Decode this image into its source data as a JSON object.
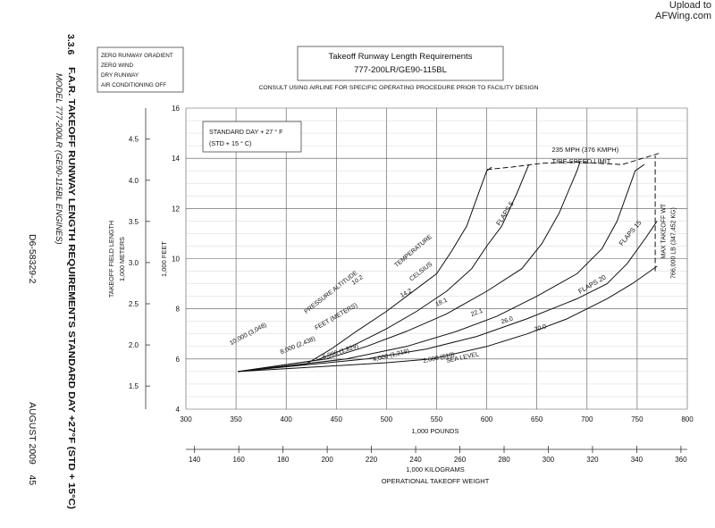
{
  "watermark": {
    "line1": "Upload to",
    "line2": "AFWing.com"
  },
  "side": {
    "section": "3.3.6",
    "heading": "F.A.R. TAKEOFF RUNWAY LENGTH REQUIREMENTS STANDARD DAY +27°F (STD + 15°C)",
    "model": "MODEL 777-200LR (GE90-115BL ENGINES)",
    "doc_number": "D6-58329-2",
    "date_page": "AUGUST 2009    45"
  },
  "conditions_box": [
    "ZERO RUNWAY GRADIENT",
    "ZERO WIND",
    "DRY RUNWAY",
    "AIR CONDITIONING OFF"
  ],
  "chart_data": {
    "type": "line",
    "title": "Takeoff Runway Length Requirements",
    "subtitle": "777-200LR/GE90-115BL",
    "note": "CONSULT USING AIRLINE FOR SPECIFIC OPERATING PROCEDURE PRIOR TO FACILITY DESIGN",
    "xlabel": "1,000 POUNDS",
    "xlim": [
      300,
      800
    ],
    "xticks": [
      300,
      350,
      400,
      450,
      500,
      550,
      600,
      650,
      700,
      750,
      800
    ],
    "x2label": "1,000 KILOGRAMS",
    "x2lim": [
      136,
      363
    ],
    "x2ticks": [
      140,
      160,
      180,
      200,
      220,
      240,
      260,
      280,
      300,
      320,
      340,
      360
    ],
    "bottom_label": "OPERATIONAL TAKEOFF WEIGHT",
    "ylabel": "1,000 FEET",
    "ylim": [
      4,
      16
    ],
    "yticks": [
      4,
      6,
      8,
      10,
      12,
      14,
      16
    ],
    "y2label_main": "TAKEOFF FIELD LENGTH",
    "y2label_sub": "1,000 METERS",
    "y2ticks": [
      1.5,
      2.0,
      2.5,
      3.0,
      3.5,
      4.0,
      4.5
    ],
    "grid": true,
    "std_day_box": [
      "STANDARD DAY + 27 ° F",
      "(STD + 15 ° C)"
    ],
    "series": [
      {
        "name": "10,000 (3,048)",
        "temp": "10.2",
        "points": [
          [
            352,
            5.5
          ],
          [
            420,
            5.8
          ],
          [
            445,
            6.4
          ],
          [
            470,
            7.1
          ],
          [
            500,
            7.9
          ],
          [
            530,
            8.8
          ],
          [
            550,
            9.4
          ],
          [
            565,
            10.3
          ],
          [
            580,
            11.3
          ],
          [
            590,
            12.4
          ],
          [
            600,
            13.5
          ],
          [
            605,
            13.65
          ]
        ]
      },
      {
        "name": "8,000 (2,438)",
        "temp": "14.2",
        "points": [
          [
            352,
            5.5
          ],
          [
            430,
            5.95
          ],
          [
            465,
            6.5
          ],
          [
            500,
            7.2
          ],
          [
            530,
            7.9
          ],
          [
            560,
            8.7
          ],
          [
            585,
            9.6
          ],
          [
            600,
            10.5
          ],
          [
            615,
            11.3
          ],
          [
            630,
            12.6
          ],
          [
            642,
            13.75
          ]
        ]
      },
      {
        "name": "6,000 (1,829)",
        "temp": "18.1",
        "points": [
          [
            352,
            5.5
          ],
          [
            440,
            6.0
          ],
          [
            480,
            6.5
          ],
          [
            520,
            7.1
          ],
          [
            560,
            7.8
          ],
          [
            600,
            8.7
          ],
          [
            635,
            9.6
          ],
          [
            655,
            10.6
          ],
          [
            672,
            11.8
          ],
          [
            690,
            13.5
          ],
          [
            693,
            13.85
          ]
        ]
      },
      {
        "name": "4,000 (1,219)",
        "temp": "22.1",
        "points": [
          [
            352,
            5.5
          ],
          [
            460,
            6.0
          ],
          [
            520,
            6.5
          ],
          [
            570,
            7.1
          ],
          [
            610,
            7.7
          ],
          [
            650,
            8.5
          ],
          [
            690,
            9.4
          ],
          [
            715,
            10.4
          ],
          [
            730,
            11.5
          ],
          [
            748,
            13.5
          ],
          [
            757,
            13.75
          ]
        ]
      },
      {
        "name": "2,000 (610)",
        "temp": "26.0",
        "points": [
          [
            352,
            5.5
          ],
          [
            480,
            6.0
          ],
          [
            540,
            6.4
          ],
          [
            590,
            6.9
          ],
          [
            640,
            7.6
          ],
          [
            690,
            8.4
          ],
          [
            720,
            9.0
          ],
          [
            740,
            9.8
          ],
          [
            758,
            10.8
          ],
          [
            770,
            11.5
          ]
        ]
      },
      {
        "name": "SEA LEVEL",
        "temp": "30.0",
        "points": [
          [
            352,
            5.5
          ],
          [
            500,
            5.85
          ],
          [
            545,
            6.0
          ],
          [
            600,
            6.5
          ],
          [
            640,
            7.0
          ],
          [
            680,
            7.6
          ],
          [
            720,
            8.4
          ],
          [
            745,
            9.0
          ],
          [
            770,
            9.7
          ]
        ]
      }
    ],
    "tire_limit_points": [
      [
        600,
        13.55
      ],
      [
        625,
        13.65
      ],
      [
        655,
        13.8
      ],
      [
        690,
        13.85
      ],
      [
        735,
        13.75
      ],
      [
        772,
        14.2
      ]
    ],
    "max_weight_line": {
      "x": 768,
      "y_from": 9.5,
      "y_to": 14.1
    },
    "annotations": {
      "pressure_altitude": "PRESSURE ALTITUDE",
      "feet_meters": "FEET  (METERS)",
      "temperature": "TEMPERATURE",
      "celsius": "CELSIUS",
      "tire_speed_1": "235 MPH (376 KMPH)",
      "tire_speed_2": "TIRE SPEED LIMIT",
      "flaps5": "FLAPS 5",
      "flaps15": "FLAPS 15",
      "flaps20": "FLAPS 20",
      "max_wt_1": "MAX TAKEOFF WT",
      "max_wt_2": "766,000 LB (347,452 KG)"
    }
  }
}
